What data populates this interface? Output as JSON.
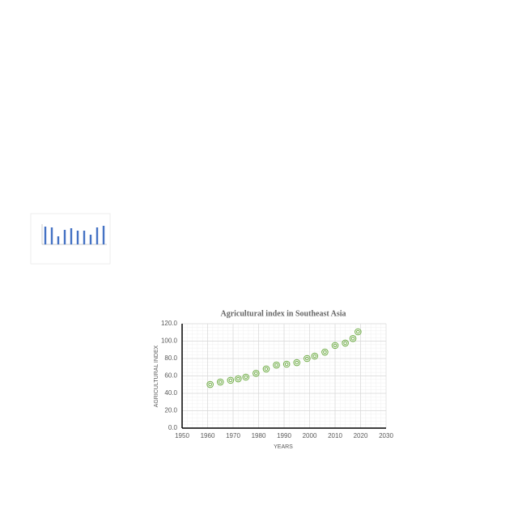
{
  "chart_data": [
    {
      "type": "scatter",
      "title": "Agricultural index in Southeast Asia",
      "x_label": "YEARS",
      "y_label": "AGRICULTURAL INDEX",
      "series": [
        {
          "color": "#70ad47",
          "x": [
            1961,
            1965,
            1969,
            1972,
            1975,
            1979,
            1983,
            1987,
            1991,
            1995,
            1999,
            2002,
            2006,
            2010,
            2014,
            2017,
            2019
          ],
          "values": [
            50.2,
            53,
            55,
            56.7,
            58.6,
            63,
            68,
            72.5,
            73.5,
            75.3,
            80,
            82.8,
            87.4,
            95,
            97.7,
            103,
            110.7
          ]
        }
      ],
      "xlim": [
        1950,
        2030
      ],
      "xticks": [
        1950,
        1960,
        1970,
        1980,
        1990,
        2000,
        2010,
        2020,
        2030
      ],
      "ylim": [
        0,
        120
      ],
      "yticks": [
        {
          "value": 0,
          "label": "0.0"
        },
        {
          "value": 20,
          "label": "20.0"
        },
        {
          "value": 40,
          "label": "40.0"
        },
        {
          "value": 60,
          "label": "60.0"
        },
        {
          "value": 80,
          "label": "80.0"
        },
        {
          "value": 100,
          "label": "100.0"
        },
        {
          "value": 120,
          "label": "120.0"
        }
      ],
      "grid": true,
      "minor_grid": true
    },
    {
      "type": "bar",
      "color": "#4472c4",
      "values": [
        22,
        21,
        10,
        18,
        20,
        17,
        17,
        12,
        21,
        23
      ],
      "ylim": [
        0,
        25
      ]
    }
  ]
}
